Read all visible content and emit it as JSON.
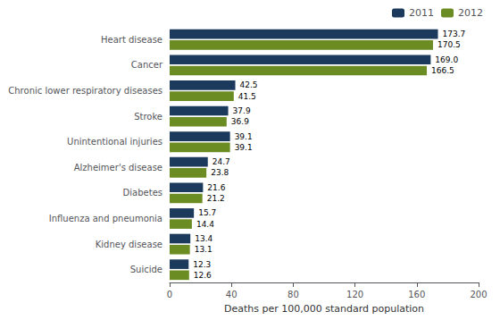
{
  "chart_data": {
    "type": "bar",
    "orientation": "horizontal",
    "categories": [
      "Heart disease",
      "Cancer",
      "Chronic lower respiratory diseases",
      "Stroke",
      "Unintentional injuries",
      "Alzheimer's disease",
      "Diabetes",
      "Influenza and pneumonia",
      "Kidney disease",
      "Suicide"
    ],
    "series": [
      {
        "name": "2011",
        "color": "#1b3a5c",
        "values": [
          173.7,
          169.0,
          42.5,
          37.9,
          39.1,
          24.7,
          21.6,
          15.7,
          13.4,
          12.3
        ],
        "value_labels": [
          "173.7",
          "169.0",
          "42.5",
          "37.9",
          "39.1",
          "24.7",
          "21.6",
          "15.7",
          "13.4",
          "12.3"
        ]
      },
      {
        "name": "2012",
        "color": "#6b8c23",
        "values": [
          170.5,
          166.5,
          41.5,
          36.9,
          39.1,
          23.8,
          21.2,
          14.4,
          13.1,
          12.6
        ],
        "value_labels": [
          "170.5",
          "166.5",
          "41.5",
          "36.9",
          "39.1",
          "23.8",
          "21.2",
          "14.4",
          "13.1",
          "12.6"
        ]
      }
    ],
    "xlabel": "Deaths per 100,000 standard population",
    "xlim": [
      0,
      200
    ],
    "xticks": [
      0,
      40,
      80,
      120,
      160,
      200
    ],
    "grid": false,
    "legend": "upper right",
    "data_labels": true
  }
}
